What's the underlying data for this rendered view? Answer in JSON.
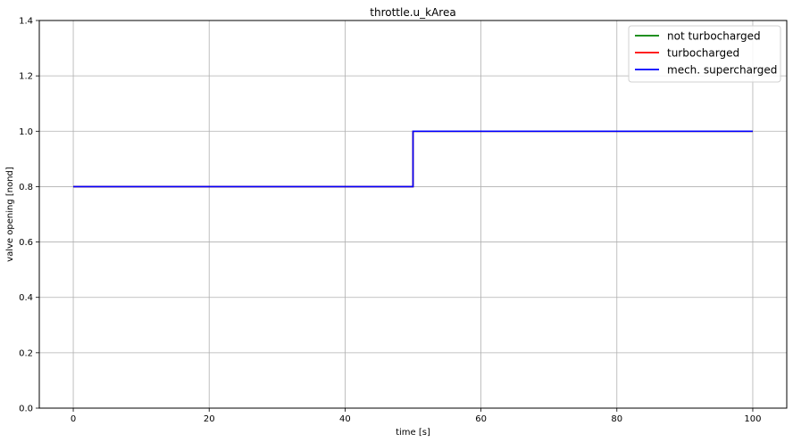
{
  "chart_data": {
    "type": "line",
    "title": "throttle.u_kArea",
    "xlabel": "time [s]",
    "ylabel": "valve opening [nond]",
    "xlim": [
      -5,
      105
    ],
    "ylim": [
      0,
      1.4
    ],
    "xticks": [
      0,
      20,
      40,
      60,
      80,
      100
    ],
    "yticks": [
      0.0,
      0.2,
      0.4,
      0.6,
      0.8,
      1.0,
      1.2,
      1.4
    ],
    "xtick_labels": [
      "0",
      "20",
      "40",
      "60",
      "80",
      "100"
    ],
    "ytick_labels": [
      "0.0",
      "0.2",
      "0.4",
      "0.6",
      "0.8",
      "1.0",
      "1.2",
      "1.4"
    ],
    "grid": true,
    "legend_position": "top-right",
    "series": [
      {
        "name": "not turbocharged",
        "color": "#008000",
        "x": [
          0,
          50,
          50,
          100
        ],
        "y": [
          0.8,
          0.8,
          1.0,
          1.0
        ]
      },
      {
        "name": "turbocharged",
        "color": "#ff0000",
        "x": [
          0,
          50,
          50,
          100
        ],
        "y": [
          0.8,
          0.8,
          1.0,
          1.0
        ]
      },
      {
        "name": "mech. supercharged",
        "color": "#0000ff",
        "x": [
          0,
          50,
          50,
          100
        ],
        "y": [
          0.8,
          0.8,
          1.0,
          1.0
        ]
      }
    ]
  }
}
